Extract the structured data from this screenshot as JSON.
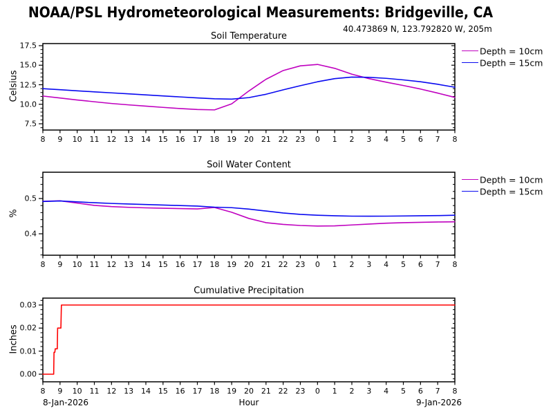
{
  "page": {
    "title": "NOAA/PSL Hydrometeorological Measurements: Bridgeville, CA",
    "subtitle": "40.473869 N, 123.792820 W, 205m"
  },
  "xaxis": {
    "tick_labels": [
      "8",
      "9",
      "10",
      "11",
      "12",
      "13",
      "14",
      "15",
      "16",
      "17",
      "18",
      "19",
      "20",
      "21",
      "22",
      "23",
      "0",
      "1",
      "2",
      "3",
      "4",
      "5",
      "6",
      "7",
      "8"
    ],
    "start_hour": 8,
    "label": "Hour",
    "date_start": "8-Jan-2026",
    "date_end": "9-Jan-2026"
  },
  "chart_data": [
    {
      "type": "line",
      "title": "Soil Temperature",
      "ylabel": "Celsius",
      "ylim": [
        6.7,
        17.77
      ],
      "yticks": {
        "values": [
          17.5,
          15.0,
          12.5,
          10.0,
          7.5
        ],
        "labels": [
          "17.5",
          "15.0",
          "12.5",
          "10.0",
          "7.5"
        ]
      },
      "minor_step": 0.5,
      "legend": true,
      "grid": false,
      "series": [
        {
          "name": "Depth = 10cm",
          "color": "#bf00bf",
          "values": [
            11.05,
            10.8,
            10.55,
            10.32,
            10.1,
            9.92,
            9.76,
            9.6,
            9.45,
            9.33,
            9.28,
            10.05,
            11.7,
            13.2,
            14.32,
            14.92,
            15.1,
            14.6,
            13.85,
            13.28,
            12.83,
            12.4,
            11.95,
            11.43,
            10.88
          ]
        },
        {
          "name": "Depth = 15cm",
          "color": "#0808f0",
          "values": [
            12.0,
            11.86,
            11.72,
            11.59,
            11.46,
            11.33,
            11.2,
            11.07,
            10.94,
            10.81,
            10.7,
            10.66,
            10.85,
            11.28,
            11.85,
            12.38,
            12.88,
            13.28,
            13.48,
            13.45,
            13.32,
            13.12,
            12.88,
            12.56,
            12.18
          ]
        }
      ]
    },
    {
      "type": "line",
      "title": "Soil Water Content",
      "ylabel": "%",
      "ylim": [
        0.3392,
        0.5745
      ],
      "yticks": {
        "values": [
          0.5,
          0.4
        ],
        "labels": [
          "0.5",
          "0.4"
        ]
      },
      "minor_step": 0.02,
      "legend": true,
      "grid": false,
      "series": [
        {
          "name": "Depth = 10cm",
          "color": "#bf00bf",
          "values": [
            0.492,
            0.4935,
            0.487,
            0.4805,
            0.477,
            0.475,
            0.4735,
            0.4725,
            0.4715,
            0.4705,
            0.4745,
            0.461,
            0.4435,
            0.4315,
            0.4265,
            0.4235,
            0.422,
            0.4225,
            0.425,
            0.4275,
            0.43,
            0.4315,
            0.4325,
            0.4335,
            0.434
          ]
        },
        {
          "name": "Depth = 15cm",
          "color": "#0808f0",
          "values": [
            0.4915,
            0.493,
            0.4905,
            0.488,
            0.486,
            0.4845,
            0.483,
            0.4815,
            0.48,
            0.4785,
            0.4755,
            0.474,
            0.47,
            0.4645,
            0.459,
            0.455,
            0.4525,
            0.451,
            0.45,
            0.4498,
            0.45,
            0.4505,
            0.451,
            0.4515,
            0.4525
          ]
        }
      ]
    },
    {
      "type": "step",
      "title": "Cumulative Precipitation",
      "ylabel": "Inches",
      "ylim": [
        -0.0033,
        0.033
      ],
      "yticks": {
        "values": [
          0.03,
          0.02,
          0.01,
          0.0
        ],
        "labels": [
          "0.03",
          "0.02",
          "0.01",
          "0.00"
        ]
      },
      "minor_step": 0.002,
      "legend": false,
      "grid": false,
      "series": [
        {
          "color": "#ff0000",
          "points": [
            [
              8,
              0
            ],
            [
              8.63,
              0
            ],
            [
              8.65,
              0.0095
            ],
            [
              8.7,
              0.0095
            ],
            [
              8.72,
              0.011
            ],
            [
              8.84,
              0.011
            ],
            [
              8.86,
              0.02
            ],
            [
              9.05,
              0.02
            ],
            [
              9.08,
              0.03
            ],
            [
              32,
              0.03
            ]
          ]
        }
      ]
    }
  ]
}
